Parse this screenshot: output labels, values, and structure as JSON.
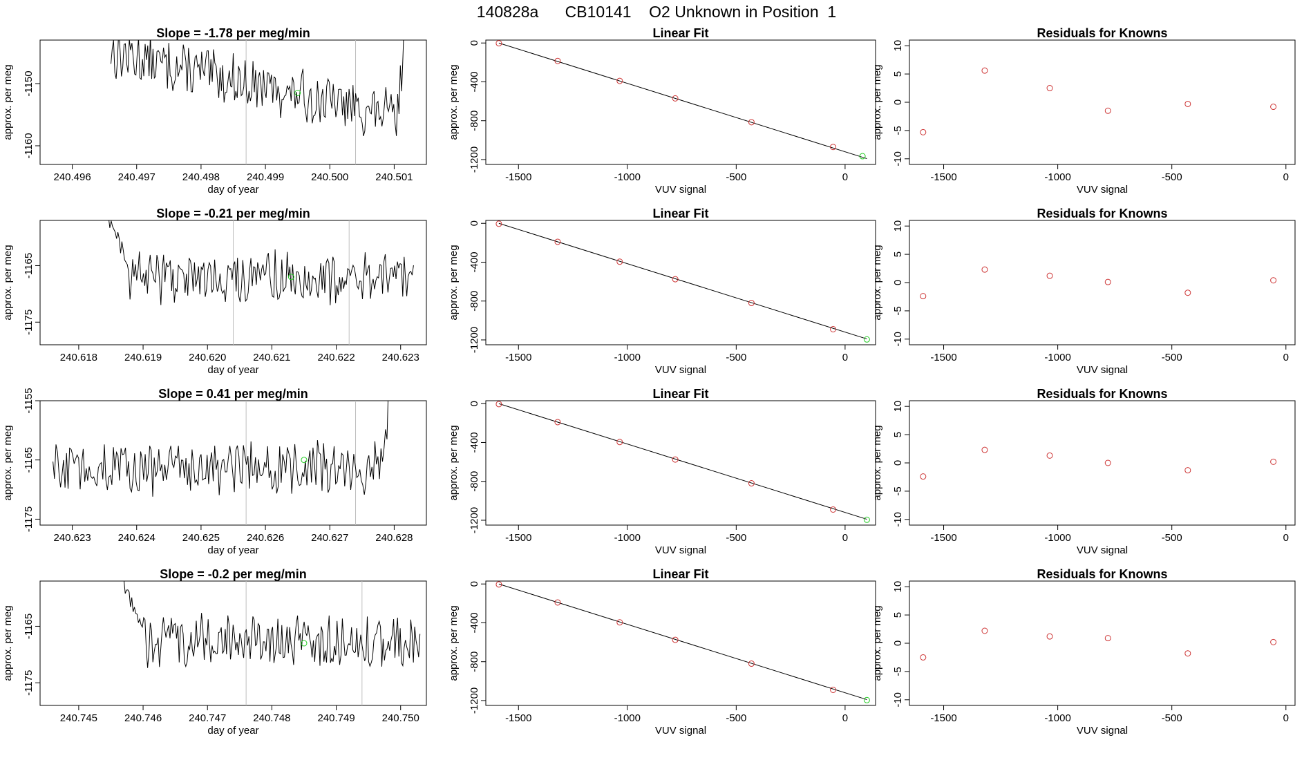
{
  "page_title": "140828a      CB10141    O2 Unknown in Position  1",
  "colors": {
    "line": "#000000",
    "known": "#cd3333",
    "unknown": "#22cc22",
    "vline": "#bebebe"
  },
  "chart_data": [
    {
      "type": "line",
      "row": 0,
      "title": "Slope =  -1.78  per meg/min",
      "xlabel": "day of year",
      "ylabel": "approx. per meg",
      "xlim": [
        240.4955,
        240.5015
      ],
      "ylim": [
        -1163,
        -1143
      ],
      "xticks": [
        240.496,
        240.497,
        240.498,
        240.499,
        240.5,
        240.501
      ],
      "xtick_labels": [
        "240.496",
        "240.497",
        "240.498",
        "240.499",
        "240.500",
        "240.501"
      ],
      "yticks": [
        -1150,
        -1160
      ],
      "ytick_labels": [
        "-1150",
        "-1160"
      ],
      "vlines": [
        240.4987,
        240.5004
      ],
      "start": 240.4966,
      "end": 240.5013,
      "base": -1145,
      "slope": -11,
      "noise": 1.6,
      "sharp_rise": true,
      "unknown_point": [
        240.4995,
        -1151.5
      ]
    },
    {
      "type": "scatter",
      "row": 0,
      "title": "Linear Fit",
      "xlabel": "VUV signal",
      "ylabel": "approx. per meg",
      "xlim": [
        -1650,
        140
      ],
      "ylim": [
        -1250,
        30
      ],
      "xticks": [
        -1500,
        -1000,
        -500,
        0
      ],
      "xtick_labels": [
        "-1500",
        "-1000",
        "-500",
        "0"
      ],
      "yticks": [
        0,
        -400,
        -800,
        -1200
      ],
      "ytick_labels": [
        "0",
        "-400",
        "-800",
        "-1200"
      ],
      "fit_line": [
        [
          -1590,
          0
        ],
        [
          100,
          -1190
        ]
      ],
      "knowns": [
        [
          -1590,
          -3
        ],
        [
          -1320,
          -185
        ],
        [
          -1035,
          -390
        ],
        [
          -780,
          -570
        ],
        [
          -430,
          -815
        ],
        [
          -55,
          -1070
        ]
      ],
      "unknown": [
        80,
        -1165
      ]
    },
    {
      "type": "scatter",
      "row": 0,
      "title": "Residuals for Knowns",
      "xlabel": "VUV signal",
      "ylabel": "approx. per meg",
      "xlim": [
        -1650,
        40
      ],
      "ylim": [
        -11,
        11
      ],
      "xticks": [
        -1500,
        -1000,
        -500,
        0
      ],
      "xtick_labels": [
        "-1500",
        "-1000",
        "-500",
        "0"
      ],
      "yticks": [
        10,
        5,
        0,
        -5,
        -10
      ],
      "ytick_labels": [
        "10",
        "5",
        "0",
        "-5",
        "-10"
      ],
      "points": [
        [
          -1590,
          -5.3
        ],
        [
          -1320,
          5.6
        ],
        [
          -1035,
          2.5
        ],
        [
          -780,
          -1.5
        ],
        [
          -430,
          -0.3
        ],
        [
          -55,
          -0.8
        ]
      ]
    },
    {
      "type": "line",
      "row": 1,
      "title": "Slope =  -0.21  per meg/min",
      "xlabel": "day of year",
      "ylabel": "approx. per meg",
      "xlim": [
        240.6174,
        240.6234
      ],
      "ylim": [
        -1179,
        -1157
      ],
      "xticks": [
        240.618,
        240.619,
        240.62,
        240.621,
        240.622,
        240.623
      ],
      "xtick_labels": [
        "240.618",
        "240.619",
        "240.620",
        "240.621",
        "240.622",
        "240.623"
      ],
      "yticks": [
        -1165,
        -1175
      ],
      "ytick_labels": [
        "-1165",
        "-1175"
      ],
      "vlines": [
        240.6204,
        240.6222
      ],
      "start": 240.6184,
      "end": 240.6232,
      "base": -1167,
      "slope": -0.2,
      "noise": 1.8,
      "start_high": -1155,
      "unknown_point": [
        240.6213,
        -1167
      ]
    },
    {
      "type": "scatter",
      "row": 1,
      "title": "Linear Fit",
      "xlabel": "VUV signal",
      "ylabel": "approx. per meg",
      "xlim": [
        -1650,
        140
      ],
      "ylim": [
        -1250,
        30
      ],
      "xticks": [
        -1500,
        -1000,
        -500,
        0
      ],
      "xtick_labels": [
        "-1500",
        "-1000",
        "-500",
        "0"
      ],
      "yticks": [
        0,
        -400,
        -800,
        -1200
      ],
      "ytick_labels": [
        "0",
        "-400",
        "-800",
        "-1200"
      ],
      "fit_line": [
        [
          -1590,
          0
        ],
        [
          100,
          -1190
        ]
      ],
      "knowns": [
        [
          -1590,
          -5
        ],
        [
          -1320,
          -190
        ],
        [
          -1035,
          -395
        ],
        [
          -780,
          -575
        ],
        [
          -430,
          -820
        ],
        [
          -55,
          -1090
        ]
      ],
      "unknown": [
        100,
        -1195
      ]
    },
    {
      "type": "scatter",
      "row": 1,
      "title": "Residuals for Knowns",
      "xlabel": "VUV signal",
      "ylabel": "approx. per meg",
      "xlim": [
        -1650,
        40
      ],
      "ylim": [
        -11,
        11
      ],
      "xticks": [
        -1500,
        -1000,
        -500,
        0
      ],
      "xtick_labels": [
        "-1500",
        "-1000",
        "-500",
        "0"
      ],
      "yticks": [
        10,
        5,
        0,
        -5,
        -10
      ],
      "ytick_labels": [
        "10",
        "5",
        "0",
        "-5",
        "-10"
      ],
      "points": [
        [
          -1590,
          -2.4
        ],
        [
          -1320,
          2.3
        ],
        [
          -1035,
          1.2
        ],
        [
          -780,
          0.1
        ],
        [
          -430,
          -1.8
        ],
        [
          -55,
          0.4
        ]
      ]
    },
    {
      "type": "line",
      "row": 2,
      "title": "Slope =  0.41  per meg/min",
      "xlabel": "day of year",
      "ylabel": "approx. per meg",
      "xlim": [
        240.6225,
        240.6285
      ],
      "ylim": [
        -1176,
        -1155
      ],
      "xticks": [
        240.623,
        240.624,
        240.625,
        240.626,
        240.627,
        240.628
      ],
      "xtick_labels": [
        "240.623",
        "240.624",
        "240.625",
        "240.626",
        "240.627",
        "240.628"
      ],
      "yticks": [
        -1155,
        -1165,
        -1175
      ],
      "ytick_labels": [
        "-1155",
        "-1165",
        "-1175"
      ],
      "vlines": [
        240.6257,
        240.6274
      ],
      "start": 240.6227,
      "end": 240.6281,
      "base": -1166.5,
      "slope": 0.3,
      "noise": 1.8,
      "sharp_rise": true,
      "unknown_point": [
        240.6266,
        -1165
      ]
    },
    {
      "type": "scatter",
      "row": 2,
      "title": "Linear Fit",
      "xlabel": "VUV signal",
      "ylabel": "approx. per meg",
      "xlim": [
        -1650,
        140
      ],
      "ylim": [
        -1250,
        30
      ],
      "xticks": [
        -1500,
        -1000,
        -500,
        0
      ],
      "xtick_labels": [
        "-1500",
        "-1000",
        "-500",
        "0"
      ],
      "yticks": [
        0,
        -400,
        -800,
        -1200
      ],
      "ytick_labels": [
        "0",
        "-400",
        "-800",
        "-1200"
      ],
      "fit_line": [
        [
          -1590,
          0
        ],
        [
          100,
          -1190
        ]
      ],
      "knowns": [
        [
          -1590,
          -5
        ],
        [
          -1320,
          -190
        ],
        [
          -1035,
          -395
        ],
        [
          -780,
          -575
        ],
        [
          -430,
          -820
        ],
        [
          -55,
          -1090
        ]
      ],
      "unknown": [
        100,
        -1195
      ]
    },
    {
      "type": "scatter",
      "row": 2,
      "title": "Residuals for Knowns",
      "xlabel": "VUV signal",
      "ylabel": "approx. per meg",
      "xlim": [
        -1650,
        40
      ],
      "ylim": [
        -11,
        11
      ],
      "xticks": [
        -1500,
        -1000,
        -500,
        0
      ],
      "xtick_labels": [
        "-1500",
        "-1000",
        "-500",
        "0"
      ],
      "yticks": [
        10,
        5,
        0,
        -5,
        -10
      ],
      "ytick_labels": [
        "10",
        "5",
        "0",
        "-5",
        "-10"
      ],
      "points": [
        [
          -1590,
          -2.4
        ],
        [
          -1320,
          2.3
        ],
        [
          -1035,
          1.3
        ],
        [
          -780,
          0.0
        ],
        [
          -430,
          -1.3
        ],
        [
          -55,
          0.2
        ]
      ]
    },
    {
      "type": "line",
      "row": 3,
      "title": "Slope =  -0.2  per meg/min",
      "xlabel": "day of year",
      "ylabel": "approx. per meg",
      "xlim": [
        240.7444,
        240.7504
      ],
      "ylim": [
        -1179,
        -1157
      ],
      "xticks": [
        240.745,
        240.746,
        240.747,
        240.748,
        240.749,
        240.75
      ],
      "xtick_labels": [
        "240.745",
        "240.746",
        "240.747",
        "240.748",
        "240.749",
        "240.750"
      ],
      "yticks": [
        -1165,
        -1175
      ],
      "ytick_labels": [
        "-1165",
        "-1175"
      ],
      "vlines": [
        240.7476,
        240.7494
      ],
      "start": 240.7456,
      "end": 240.7503,
      "base": -1167.5,
      "slope": -0.2,
      "noise": 1.8,
      "start_high": -1155,
      "unknown_point": [
        240.7485,
        -1168
      ]
    },
    {
      "type": "scatter",
      "row": 3,
      "title": "Linear Fit",
      "xlabel": "VUV signal",
      "ylabel": "approx. per meg",
      "xlim": [
        -1650,
        140
      ],
      "ylim": [
        -1250,
        30
      ],
      "xticks": [
        -1500,
        -1000,
        -500,
        0
      ],
      "xtick_labels": [
        "-1500",
        "-1000",
        "-500",
        "0"
      ],
      "yticks": [
        0,
        -400,
        -800,
        -1200
      ],
      "ytick_labels": [
        "0",
        "-400",
        "-800",
        "-1200"
      ],
      "fit_line": [
        [
          -1590,
          0
        ],
        [
          100,
          -1190
        ]
      ],
      "knowns": [
        [
          -1590,
          -5
        ],
        [
          -1320,
          -190
        ],
        [
          -1035,
          -395
        ],
        [
          -780,
          -575
        ],
        [
          -430,
          -820
        ],
        [
          -55,
          -1090
        ]
      ],
      "unknown": [
        100,
        -1195
      ]
    },
    {
      "type": "scatter",
      "row": 3,
      "title": "Residuals for Knowns",
      "xlabel": "VUV signal",
      "ylabel": "approx. per meg",
      "xlim": [
        -1650,
        40
      ],
      "ylim": [
        -11,
        11
      ],
      "xticks": [
        -1500,
        -1000,
        -500,
        0
      ],
      "xtick_labels": [
        "-1500",
        "-1000",
        "-500",
        "0"
      ],
      "yticks": [
        10,
        5,
        0,
        -5,
        -10
      ],
      "ytick_labels": [
        "10",
        "5",
        "0",
        "-5",
        "-10"
      ],
      "points": [
        [
          -1590,
          -2.5
        ],
        [
          -1320,
          2.2
        ],
        [
          -1035,
          1.2
        ],
        [
          -780,
          0.9
        ],
        [
          -430,
          -1.8
        ],
        [
          -55,
          0.2
        ]
      ]
    }
  ]
}
